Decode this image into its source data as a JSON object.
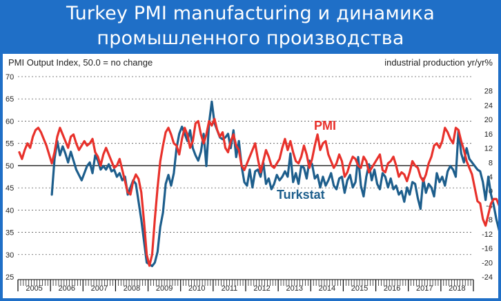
{
  "header": {
    "title_line1": "Turkey PMI manufacturing и динамика",
    "title_line2": "промышленного производства"
  },
  "colors": {
    "background": "#1f6fc7",
    "pmi": "#e8312b",
    "turkstat": "#1d5e8c",
    "grid": "#555555"
  },
  "chart_data": {
    "type": "line",
    "left_axis_title": "PMI Output Index, 50.0 = no change",
    "right_axis_title": "industrial production yr/yr%",
    "y_left": {
      "min": 25,
      "max": 70,
      "ticks": [
        25,
        30,
        35,
        40,
        45,
        50,
        55,
        60,
        65,
        70
      ]
    },
    "y_right": {
      "min": -24,
      "max": 32,
      "ticks": [
        -24,
        -20,
        -16,
        -12,
        -8,
        -4,
        0,
        4,
        8,
        12,
        16,
        20,
        24,
        28
      ]
    },
    "reference_line": 50,
    "grid": "horizontal dotted",
    "x_start": "2005-01",
    "x_end": "2019-01",
    "years": [
      "2005",
      "2006",
      "2007",
      "2008",
      "2009",
      "2010",
      "2011",
      "2012",
      "2013",
      "2014",
      "2015",
      "2016",
      "2017",
      "2018"
    ],
    "series": [
      {
        "name": "PMI",
        "axis": "left",
        "color": "#e8312b",
        "monthly_start": "2005-01",
        "values": [
          53.0,
          51.5,
          53.5,
          55.0,
          54.0,
          56.5,
          58.0,
          58.5,
          57.5,
          56.0,
          54.5,
          52.5,
          50.5,
          53.0,
          56.5,
          58.5,
          57.0,
          55.5,
          54.0,
          56.5,
          57.0,
          55.0,
          53.5,
          54.5,
          55.5,
          54.5,
          55.0,
          56.0,
          53.0,
          52.0,
          50.0,
          52.5,
          54.0,
          52.5,
          51.0,
          49.5,
          50.0,
          51.5,
          49.0,
          46.5,
          44.0,
          43.5,
          46.5,
          48.0,
          47.0,
          44.0,
          37.5,
          30.0,
          27.5,
          30.0,
          38.0,
          45.0,
          51.0,
          54.5,
          57.5,
          58.5,
          57.0,
          55.0,
          54.5,
          52.5,
          56.0,
          58.5,
          57.0,
          54.0,
          55.5,
          59.5,
          60.0,
          57.0,
          55.0,
          57.0,
          60.0,
          59.0,
          60.5,
          58.0,
          56.5,
          57.5,
          54.0,
          53.0,
          55.5,
          57.0,
          54.5,
          53.5,
          50.0,
          49.0,
          50.5,
          52.0,
          53.5,
          55.0,
          51.5,
          48.5,
          51.0,
          53.5,
          52.0,
          50.0,
          49.5,
          50.5,
          51.5,
          54.0,
          56.0,
          53.5,
          55.5,
          53.0,
          51.0,
          50.5,
          52.0,
          54.5,
          52.5,
          49.5,
          51.5,
          54.5,
          57.0,
          53.5,
          55.0,
          55.5,
          52.5,
          51.0,
          49.5,
          50.5,
          52.5,
          51.0,
          47.5,
          48.5,
          50.5,
          52.0,
          51.5,
          50.0,
          49.5,
          52.0,
          51.0,
          48.5,
          49.5,
          50.5,
          51.5,
          52.5,
          49.0,
          48.5,
          50.5,
          51.0,
          52.0,
          50.0,
          47.5,
          48.5,
          48.0,
          46.5,
          48.5,
          51.0,
          50.0,
          49.5,
          47.5,
          46.5,
          48.0,
          50.5,
          52.0,
          54.5,
          55.0,
          54.0,
          55.5,
          58.5,
          57.5,
          56.0,
          55.0,
          58.5,
          58.0,
          55.5,
          53.5,
          51.0,
          49.5,
          48.0,
          45.0,
          42.0,
          41.5,
          38.0,
          36.5,
          39.0,
          41.5,
          42.5,
          42.5,
          41.0,
          45.5,
          47.0
        ]
      },
      {
        "name": "Turkstat",
        "axis": "right",
        "color": "#1d5e8c",
        "monthly_start": "2005-01",
        "values": [
          null,
          null,
          null,
          null,
          null,
          null,
          null,
          null,
          null,
          null,
          null,
          null,
          -1.0,
          9.0,
          14.0,
          10.0,
          12.5,
          10.5,
          8.0,
          11.0,
          8.5,
          6.0,
          4.5,
          3.0,
          5.0,
          7.0,
          8.0,
          5.0,
          10.0,
          8.5,
          6.0,
          7.0,
          6.0,
          7.5,
          5.5,
          6.0,
          4.0,
          5.0,
          3.0,
          4.0,
          -1.0,
          1.0,
          3.0,
          2.0,
          -3.0,
          -8.0,
          -14.0,
          -20.0,
          -20.5,
          -21.0,
          -20.0,
          -17.0,
          -10.0,
          -6.0,
          2.0,
          4.5,
          1.5,
          5.0,
          12.0,
          16.0,
          18.0,
          16.0,
          14.0,
          17.0,
          12.0,
          10.0,
          8.5,
          11.0,
          16.0,
          7.0,
          19.0,
          25.0,
          19.0,
          17.0,
          15.0,
          14.5,
          15.0,
          16.0,
          12.0,
          17.0,
          9.5,
          14.0,
          7.0,
          2.5,
          1.5,
          6.0,
          1.0,
          5.5,
          6.0,
          4.0,
          8.0,
          2.0,
          3.5,
          0.5,
          2.0,
          4.5,
          3.0,
          4.0,
          5.5,
          4.0,
          10.5,
          2.5,
          5.0,
          2.0,
          7.0,
          6.5,
          3.5,
          8.5,
          7.5,
          3.5,
          4.5,
          1.0,
          4.0,
          1.5,
          3.0,
          5.0,
          1.5,
          0.5,
          3.5,
          4.0,
          -0.5,
          3.0,
          4.5,
          1.0,
          2.5,
          9.5,
          1.5,
          -1.5,
          4.0,
          7.5,
          3.0,
          6.0,
          2.0,
          0.5,
          5.0,
          4.0,
          1.0,
          3.5,
          0.5,
          1.5,
          -1.0,
          0.0,
          -3.0,
          1.0,
          -1.0,
          2.5,
          2.0,
          -2.0,
          -5.0,
          3.5,
          -0.5,
          2.0,
          1.0,
          -1.5,
          5.0,
          2.5,
          4.0,
          1.5,
          5.5,
          7.0,
          6.0,
          4.0,
          17.0,
          10.5,
          8.0,
          12.0,
          9.0,
          8.0,
          7.0,
          6.0,
          5.5,
          2.5,
          -2.5,
          4.0,
          -1.0,
          -4.0,
          -8.0,
          -11.0,
          -9.0,
          -8.0,
          -8.0
        ]
      }
    ],
    "annotations": [
      {
        "text": "PMI",
        "color": "#e8312b"
      },
      {
        "text": "Turkstat",
        "color": "#1d5e8c"
      }
    ]
  }
}
